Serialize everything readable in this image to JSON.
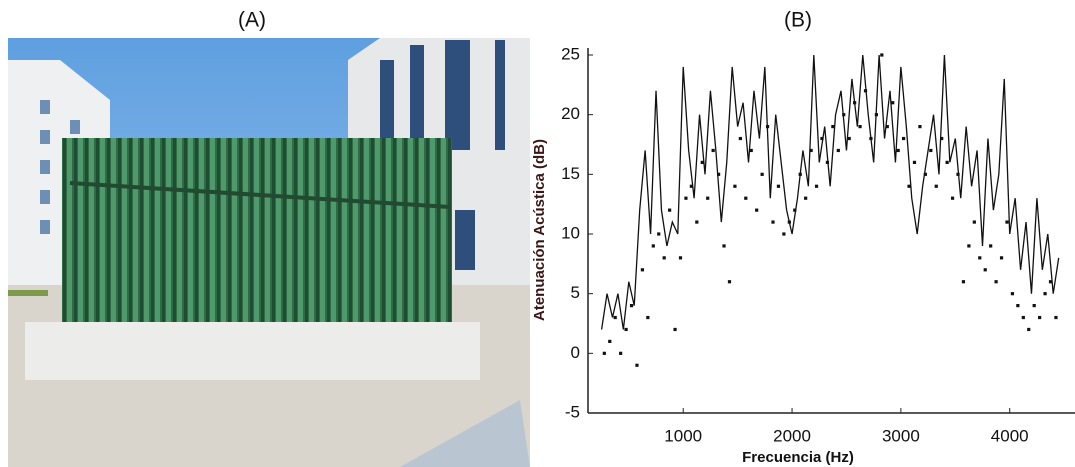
{
  "photo": {
    "label": "(A)"
  },
  "chart_data": {
    "type": "line",
    "title": "(B)",
    "x_label": "Frecuencia (Hz)",
    "y_label": "Atenuación Acústica (dB)",
    "xlim": [
      125,
      4600
    ],
    "ylim": [
      -5,
      25
    ],
    "xticks": [
      1000,
      2000,
      3000,
      4000
    ],
    "yticks": [
      -5,
      0,
      5,
      10,
      15,
      20,
      25
    ],
    "series": [
      {
        "style": "line",
        "color": "#111111",
        "x": [
          250,
          300,
          350,
          400,
          450,
          500,
          550,
          600,
          650,
          700,
          750,
          800,
          850,
          900,
          950,
          1000,
          1050,
          1100,
          1150,
          1200,
          1250,
          1300,
          1350,
          1400,
          1450,
          1500,
          1550,
          1600,
          1650,
          1700,
          1750,
          1800,
          1850,
          1900,
          1950,
          2000,
          2050,
          2100,
          2150,
          2200,
          2250,
          2300,
          2350,
          2400,
          2450,
          2500,
          2550,
          2600,
          2650,
          2700,
          2750,
          2800,
          2850,
          2900,
          2950,
          3000,
          3050,
          3100,
          3150,
          3200,
          3250,
          3300,
          3350,
          3400,
          3450,
          3500,
          3550,
          3600,
          3650,
          3700,
          3750,
          3800,
          3850,
          3900,
          3950,
          4000,
          4050,
          4100,
          4150,
          4200,
          4250,
          4300,
          4350,
          4400,
          4450
        ],
        "values": [
          2,
          5,
          3,
          5,
          2,
          6,
          4,
          12,
          17,
          10,
          22,
          12,
          9,
          11,
          10,
          24,
          17,
          13,
          20,
          15,
          22,
          17,
          11,
          16,
          24,
          19,
          21,
          16,
          22,
          18,
          24,
          13,
          20,
          16,
          12,
          10,
          13,
          17,
          14,
          25,
          16,
          19,
          14,
          20,
          22,
          17,
          23,
          19,
          25,
          20,
          16,
          25,
          18,
          22,
          16,
          24,
          19,
          13,
          10,
          14,
          17,
          20,
          15,
          25,
          16,
          18,
          13,
          19,
          14,
          17,
          9,
          18,
          12,
          15,
          23,
          10,
          13,
          7,
          11,
          5,
          13,
          7,
          10,
          5,
          8
        ]
      },
      {
        "style": "dots",
        "color": "#111111",
        "x": [
          275,
          325,
          375,
          425,
          475,
          525,
          575,
          625,
          675,
          725,
          775,
          825,
          875,
          925,
          975,
          1025,
          1075,
          1125,
          1175,
          1225,
          1275,
          1325,
          1375,
          1425,
          1475,
          1525,
          1575,
          1625,
          1675,
          1725,
          1775,
          1825,
          1875,
          1925,
          1975,
          2025,
          2075,
          2125,
          2175,
          2225,
          2275,
          2325,
          2375,
          2425,
          2475,
          2525,
          2575,
          2625,
          2675,
          2725,
          2775,
          2825,
          2875,
          2925,
          2975,
          3025,
          3075,
          3125,
          3175,
          3225,
          3275,
          3325,
          3375,
          3425,
          3475,
          3525,
          3575,
          3625,
          3675,
          3725,
          3775,
          3825,
          3875,
          3925,
          3975,
          4025,
          4075,
          4125,
          4175,
          4225,
          4275,
          4325,
          4375,
          4425
        ],
        "values": [
          0,
          1,
          3,
          0,
          2,
          4,
          -1,
          7,
          3,
          9,
          10,
          8,
          12,
          2,
          8,
          13,
          14,
          11,
          16,
          13,
          17,
          15,
          9,
          6,
          14,
          18,
          13,
          17,
          12,
          15,
          19,
          11,
          14,
          10,
          11,
          12,
          15,
          13,
          17,
          14,
          18,
          16,
          19,
          17,
          20,
          18,
          21,
          19,
          22,
          18,
          20,
          25,
          19,
          21,
          17,
          18,
          14,
          16,
          19,
          15,
          17,
          14,
          18,
          16,
          13,
          15,
          6,
          9,
          11,
          8,
          7,
          9,
          6,
          8,
          11,
          5,
          4,
          3,
          2,
          4,
          3,
          5,
          6,
          3
        ]
      }
    ]
  }
}
